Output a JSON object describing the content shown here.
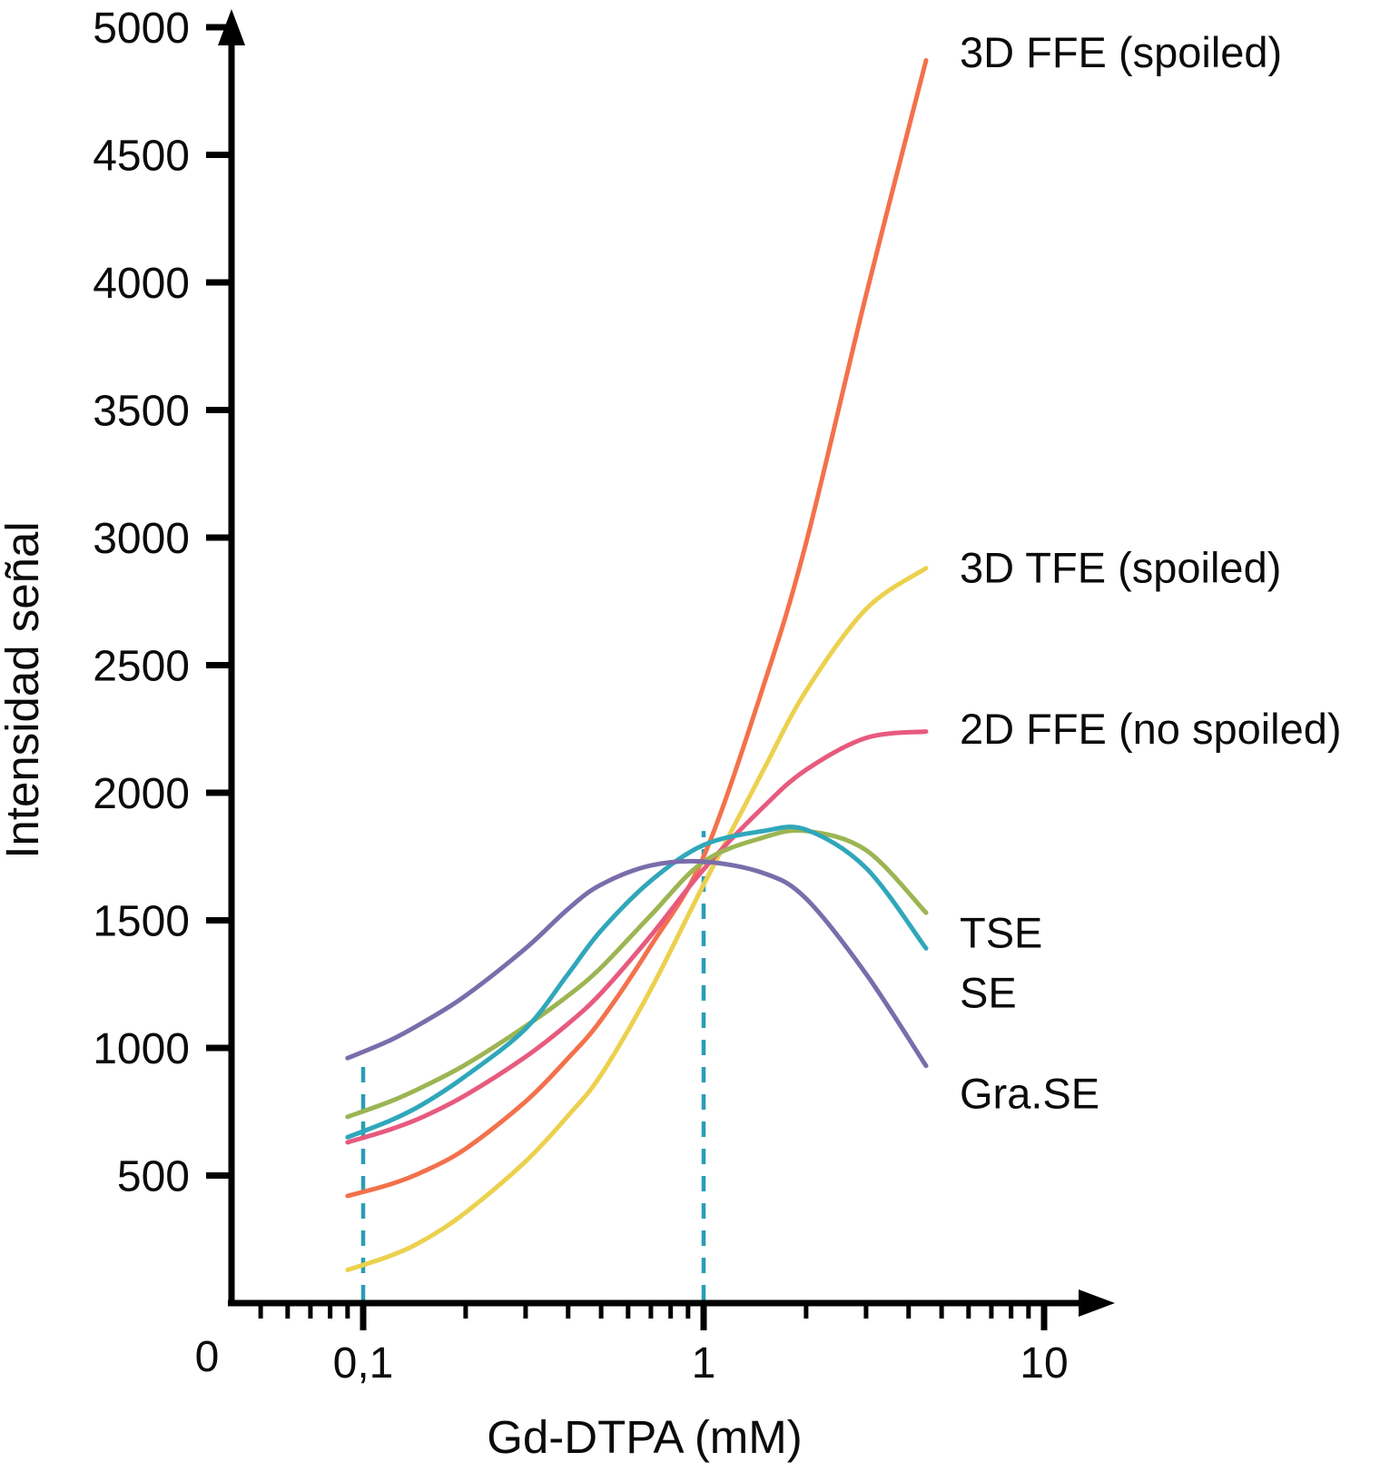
{
  "chart_data": {
    "type": "line",
    "title": "",
    "xlabel": "Gd-DTPA (mM)",
    "ylabel": "Intensidad señal",
    "grid": false,
    "legend_position": "right-annotations",
    "x_axis": {
      "scale": "log",
      "origin_label": "0",
      "ticks": [
        {
          "value": 0.1,
          "label": "0,1"
        },
        {
          "value": 1,
          "label": "1"
        },
        {
          "value": 10,
          "label": "10"
        }
      ],
      "minor_ticks": [
        0.05,
        0.06,
        0.07,
        0.08,
        0.09,
        0.2,
        0.3,
        0.4,
        0.5,
        0.6,
        0.7,
        0.8,
        0.9,
        2,
        3,
        4,
        5,
        6,
        7,
        8,
        9
      ]
    },
    "y_axis": {
      "min": 0,
      "max": 5000,
      "ticks": [
        {
          "value": 500,
          "label": "500"
        },
        {
          "value": 1000,
          "label": "1000"
        },
        {
          "value": 1500,
          "label": "1500"
        },
        {
          "value": 2000,
          "label": "2000"
        },
        {
          "value": 2500,
          "label": "2500"
        },
        {
          "value": 3000,
          "label": "3000"
        },
        {
          "value": 3500,
          "label": "3500"
        },
        {
          "value": 4000,
          "label": "4000"
        },
        {
          "value": 4500,
          "label": "4500"
        },
        {
          "value": 5000,
          "label": "5000"
        }
      ]
    },
    "guides": [
      {
        "x": 0.1,
        "y_top": 960,
        "color": "#2a9db5",
        "style": "dashed"
      },
      {
        "x": 1,
        "y_top": 1850,
        "color": "#2a9db5",
        "style": "dashed"
      }
    ],
    "series": [
      {
        "name": "3d-ffe-spoiled",
        "label": "3D FFE (spoiled)",
        "color": "#f3714b",
        "label_y": 4900,
        "points": [
          [
            0.09,
            420
          ],
          [
            0.12,
            465
          ],
          [
            0.15,
            515
          ],
          [
            0.2,
            605
          ],
          [
            0.3,
            790
          ],
          [
            0.4,
            960
          ],
          [
            0.5,
            1110
          ],
          [
            0.7,
            1400
          ],
          [
            1.0,
            1750
          ],
          [
            1.5,
            2420
          ],
          [
            2.0,
            2980
          ],
          [
            3.0,
            3950
          ],
          [
            4.5,
            4870
          ]
        ]
      },
      {
        "name": "3d-tfe-spoiled",
        "label": "3D TFE (spoiled)",
        "color": "#ecd14e",
        "label_y": 2880,
        "points": [
          [
            0.09,
            130
          ],
          [
            0.12,
            185
          ],
          [
            0.15,
            245
          ],
          [
            0.2,
            355
          ],
          [
            0.3,
            555
          ],
          [
            0.4,
            735
          ],
          [
            0.5,
            895
          ],
          [
            0.7,
            1230
          ],
          [
            1.0,
            1640
          ],
          [
            1.5,
            2090
          ],
          [
            2.0,
            2400
          ],
          [
            3.0,
            2720
          ],
          [
            4.5,
            2880
          ]
        ]
      },
      {
        "name": "2d-ffe-no-spoiled",
        "label": "2D FFE (no spoiled)",
        "color": "#e75a7e",
        "label_y": 2250,
        "points": [
          [
            0.09,
            630
          ],
          [
            0.12,
            680
          ],
          [
            0.15,
            730
          ],
          [
            0.2,
            815
          ],
          [
            0.3,
            965
          ],
          [
            0.4,
            1095
          ],
          [
            0.5,
            1215
          ],
          [
            0.7,
            1440
          ],
          [
            1.0,
            1700
          ],
          [
            1.5,
            1945
          ],
          [
            2.0,
            2090
          ],
          [
            3.0,
            2215
          ],
          [
            4.5,
            2240
          ]
        ]
      },
      {
        "name": "tse",
        "label": "TSE",
        "color": "#9cb553",
        "label_y": 1450,
        "points": [
          [
            0.09,
            730
          ],
          [
            0.12,
            790
          ],
          [
            0.15,
            848
          ],
          [
            0.2,
            935
          ],
          [
            0.3,
            1085
          ],
          [
            0.4,
            1205
          ],
          [
            0.5,
            1315
          ],
          [
            0.7,
            1520
          ],
          [
            1.0,
            1730
          ],
          [
            1.5,
            1825
          ],
          [
            2.0,
            1850
          ],
          [
            3.0,
            1775
          ],
          [
            4.5,
            1530
          ]
        ]
      },
      {
        "name": "se",
        "label": "SE",
        "color": "#30a7ba",
        "label_y": 1215,
        "points": [
          [
            0.09,
            650
          ],
          [
            0.12,
            715
          ],
          [
            0.15,
            780
          ],
          [
            0.2,
            890
          ],
          [
            0.3,
            1075
          ],
          [
            0.4,
            1290
          ],
          [
            0.5,
            1460
          ],
          [
            0.7,
            1655
          ],
          [
            1.0,
            1795
          ],
          [
            1.5,
            1850
          ],
          [
            2.0,
            1855
          ],
          [
            3.0,
            1705
          ],
          [
            4.5,
            1390
          ]
        ]
      },
      {
        "name": "gra-se",
        "label": "Gra.SE",
        "color": "#7a6dab",
        "label_y": 820,
        "points": [
          [
            0.09,
            960
          ],
          [
            0.12,
            1030
          ],
          [
            0.15,
            1100
          ],
          [
            0.2,
            1205
          ],
          [
            0.3,
            1390
          ],
          [
            0.4,
            1545
          ],
          [
            0.5,
            1640
          ],
          [
            0.7,
            1715
          ],
          [
            1.0,
            1730
          ],
          [
            1.5,
            1685
          ],
          [
            2.0,
            1585
          ],
          [
            3.0,
            1290
          ],
          [
            4.5,
            930
          ]
        ]
      }
    ]
  }
}
